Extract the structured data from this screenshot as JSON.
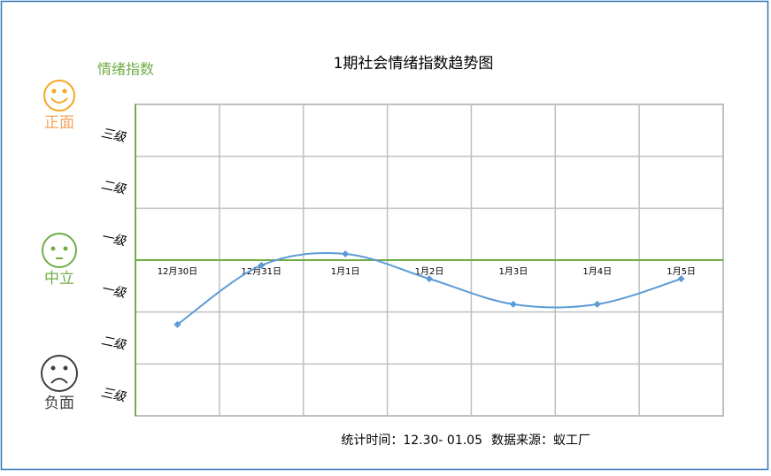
{
  "chart_data": {
    "type": "line",
    "title": "1期社会情绪指数趋势图",
    "y_label": "情绪指数",
    "sentiment_labels": [
      "正面",
      "中立",
      "负面"
    ],
    "categories": [
      "12月30日",
      "12月31日",
      "1月1日",
      "1月2日",
      "1月3日",
      "1月4日",
      "1月5日"
    ],
    "values": [
      -1.24,
      -0.1,
      0.12,
      -0.36,
      -0.85,
      -0.85,
      -0.36
    ],
    "color": "#5b9bd5",
    "ylim": [
      -3,
      3
    ],
    "yticks": [
      {
        "value": 2.5,
        "label": "三级"
      },
      {
        "value": 1.5,
        "label": "二级"
      },
      {
        "value": 0.5,
        "label": "一级"
      },
      {
        "value": -0.5,
        "label": "一级"
      },
      {
        "value": -1.5,
        "label": "二级"
      },
      {
        "value": -2.5,
        "label": "三级"
      }
    ],
    "grid": true,
    "footer": {
      "period": "统计时间：12.30- 01.05",
      "source": "数据来源：蚁工厂"
    }
  }
}
